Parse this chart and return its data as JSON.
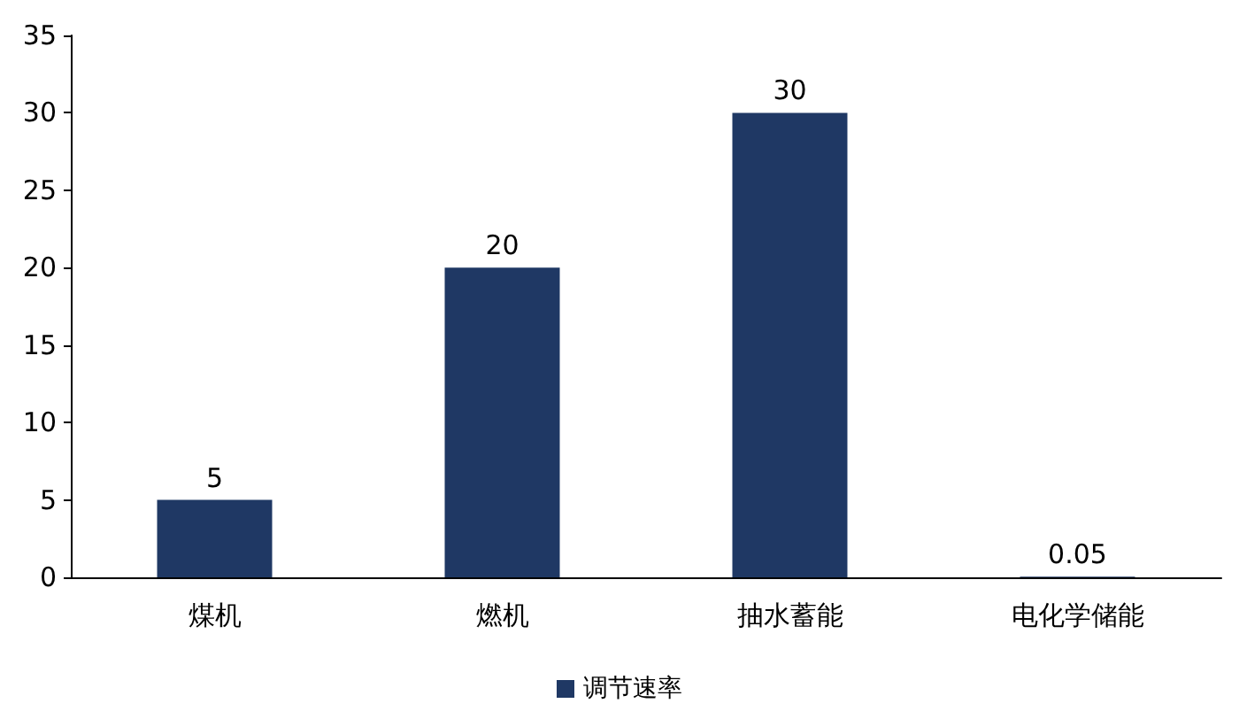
{
  "chart_data": {
    "type": "bar",
    "categories": [
      "煤机",
      "燃机",
      "抽水蓄能",
      "电化学储能"
    ],
    "series": [
      {
        "name": "调节速率",
        "color": "#1f3864",
        "values": [
          5,
          20,
          30,
          0.05
        ]
      }
    ],
    "ylim": [
      0,
      35
    ],
    "yticks": [
      0,
      5,
      10,
      15,
      20,
      25,
      30,
      35
    ],
    "grid": false,
    "legend": "bottom",
    "data_labels": true
  }
}
